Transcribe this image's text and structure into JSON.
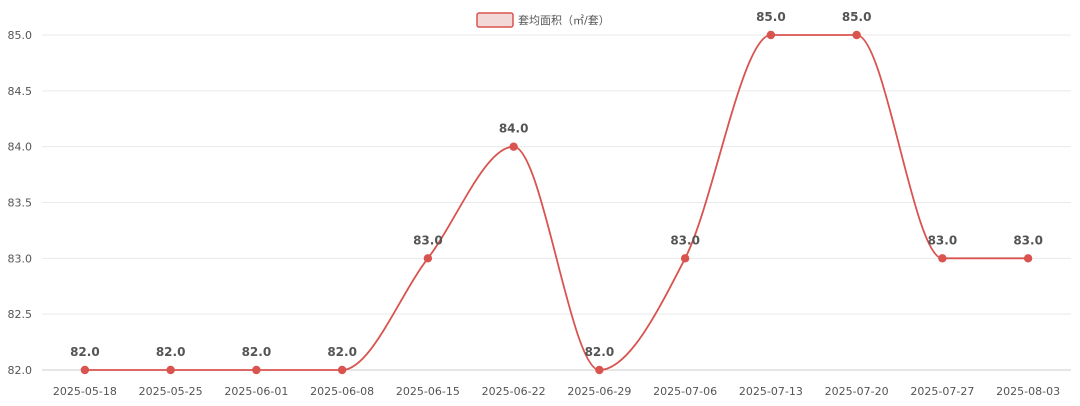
{
  "chart_data": {
    "type": "line",
    "smooth": true,
    "title": "",
    "xlabel": "",
    "ylabel": "",
    "x": [
      "2025-05-18",
      "2025-05-25",
      "2025-06-01",
      "2025-06-08",
      "2025-06-15",
      "2025-06-22",
      "2025-06-29",
      "2025-07-06",
      "2025-07-13",
      "2025-07-20",
      "2025-07-27",
      "2025-08-03"
    ],
    "series": [
      {
        "name": "套均面积（㎡/套）",
        "color": "#d9534f",
        "values": [
          82.0,
          82.0,
          82.0,
          82.0,
          83.0,
          84.0,
          82.0,
          83.0,
          85.0,
          85.0,
          83.0,
          83.0
        ],
        "labels": [
          "82.0",
          "82.0",
          "82.0",
          "82.0",
          "83.0",
          "84.0",
          "82.0",
          "83.0",
          "85.0",
          "85.0",
          "83.0",
          "83.0"
        ]
      }
    ],
    "ylim": [
      82.0,
      85.0
    ],
    "yticks": [
      "82.0",
      "82.5",
      "83.0",
      "83.5",
      "84.0",
      "84.5",
      "85.0"
    ],
    "grid": true,
    "legend_position": "top-center"
  }
}
